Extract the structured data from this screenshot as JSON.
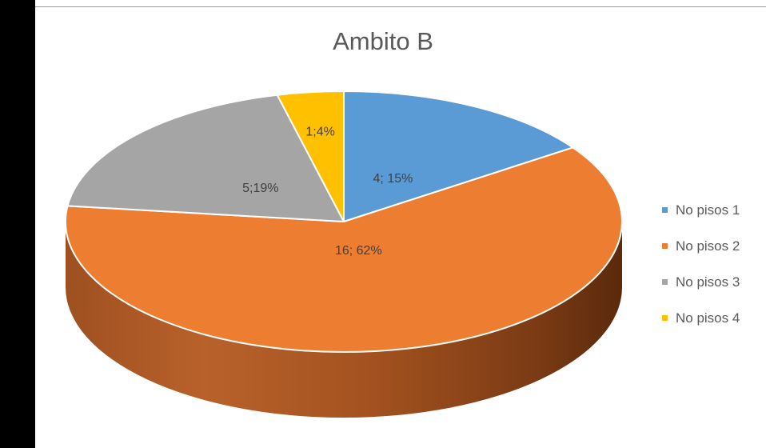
{
  "chart_data": {
    "type": "pie",
    "title": "Ambito B",
    "series": [
      {
        "name": "No pisos 1",
        "value": 4,
        "label": "4; 15%",
        "color": "#5b9bd5"
      },
      {
        "name": "No pisos 2",
        "value": 16,
        "label": "16; 62%",
        "color": "#ed7d31"
      },
      {
        "name": "No pisos 3",
        "value": 5,
        "label": "5;19%",
        "color": "#a5a5a5"
      },
      {
        "name": "No pisos 4",
        "value": 1,
        "label": "1;4%",
        "color": "#ffc000"
      }
    ],
    "legend_position": "right",
    "style": "3d"
  }
}
